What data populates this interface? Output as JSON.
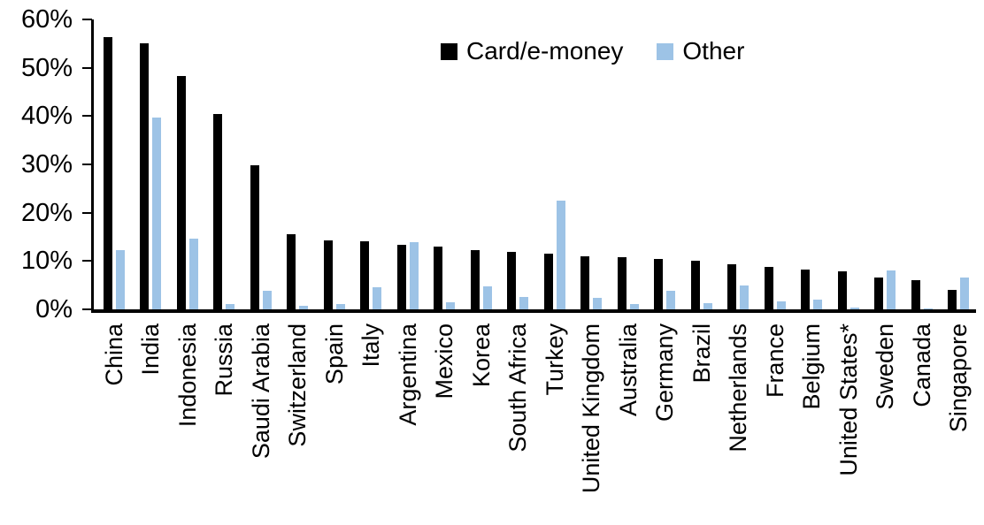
{
  "chart_data": {
    "type": "bar",
    "title": "",
    "xlabel": "",
    "ylabel": "",
    "ylim": [
      0,
      60
    ],
    "ytick_step": 10,
    "ytick_suffix": "%",
    "grid": false,
    "legend_position": "top-center",
    "categories": [
      "China",
      "India",
      "Indonesia",
      "Russia",
      "Saudi Arabia",
      "Switzerland",
      "Spain",
      "Italy",
      "Argentina",
      "Mexico",
      "Korea",
      "South Africa",
      "Turkey",
      "United Kingdom",
      "Australia",
      "Germany",
      "Brazil",
      "Netherlands",
      "France",
      "Belgium",
      "United States*",
      "Sweden",
      "Canada",
      "Singapore"
    ],
    "series": [
      {
        "name": "Card/e-money",
        "color": "#000000",
        "values": [
          56.3,
          55.0,
          48.2,
          40.5,
          29.8,
          15.6,
          14.2,
          14.1,
          13.4,
          13.0,
          12.2,
          11.8,
          11.6,
          11.0,
          10.7,
          10.5,
          10.0,
          9.3,
          8.7,
          8.2,
          7.9,
          6.5,
          6.0,
          4.0
        ]
      },
      {
        "name": "Other",
        "color": "#9DC3E6",
        "values": [
          12.3,
          39.7,
          14.6,
          1.1,
          3.9,
          0.8,
          1.1,
          4.6,
          13.9,
          1.4,
          4.7,
          2.5,
          22.5,
          2.3,
          1.1,
          3.9,
          1.3,
          4.9,
          1.7,
          2.1,
          0.3,
          8.0,
          0.2,
          6.6
        ]
      }
    ]
  }
}
